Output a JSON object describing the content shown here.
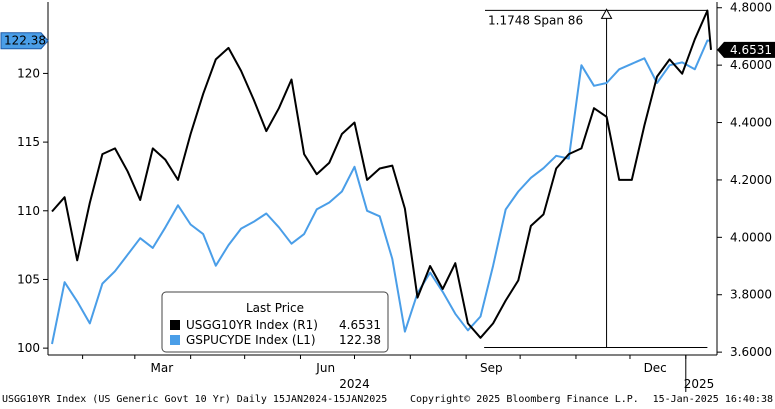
{
  "chart_data": {
    "type": "line",
    "date_range": [
      "2024-01-15",
      "2025-01-15"
    ],
    "x_tick_labels": [
      "Mar",
      "Jun",
      "Sep",
      "Dec"
    ],
    "year_labels": [
      "2024",
      "2025"
    ],
    "y_left": {
      "ticks": [
        100,
        105,
        110,
        115,
        120
      ],
      "ylim": [
        99.5,
        125.2
      ]
    },
    "y_right": {
      "ticks": [
        "3.6000",
        "3.8000",
        "4.0000",
        "4.2000",
        "4.4000",
        "4.6000",
        "4.8000"
      ],
      "ylim": [
        3.59,
        4.82
      ]
    },
    "series": [
      {
        "name": "USGG10YR Index (R1)",
        "axis": "right",
        "color": "#000000",
        "last_value": "4.6531",
        "x": [
          "2024-01-15",
          "2024-01-22",
          "2024-01-29",
          "2024-02-05",
          "2024-02-12",
          "2024-02-19",
          "2024-02-26",
          "2024-03-04",
          "2024-03-11",
          "2024-03-18",
          "2024-03-25",
          "2024-04-01",
          "2024-04-08",
          "2024-04-15",
          "2024-04-22",
          "2024-04-29",
          "2024-05-06",
          "2024-05-13",
          "2024-05-20",
          "2024-05-27",
          "2024-06-03",
          "2024-06-10",
          "2024-06-17",
          "2024-06-24",
          "2024-07-01",
          "2024-07-08",
          "2024-07-15",
          "2024-07-22",
          "2024-07-29",
          "2024-08-05",
          "2024-08-12",
          "2024-08-19",
          "2024-08-26",
          "2024-09-02",
          "2024-09-09",
          "2024-09-16",
          "2024-09-23",
          "2024-09-30",
          "2024-10-07",
          "2024-10-14",
          "2024-10-21",
          "2024-10-28",
          "2024-11-04",
          "2024-11-11",
          "2024-11-18",
          "2024-11-25",
          "2024-12-02",
          "2024-12-09",
          "2024-12-16",
          "2024-12-23",
          "2024-12-30",
          "2025-01-06",
          "2025-01-13",
          "2025-01-15"
        ],
        "y": [
          4.09,
          4.14,
          3.92,
          4.12,
          4.29,
          4.31,
          4.23,
          4.13,
          4.31,
          4.27,
          4.2,
          4.36,
          4.5,
          4.62,
          4.66,
          4.58,
          4.48,
          4.37,
          4.45,
          4.55,
          4.29,
          4.22,
          4.26,
          4.36,
          4.4,
          4.2,
          4.24,
          4.25,
          4.1,
          3.79,
          3.9,
          3.82,
          3.91,
          3.7,
          3.65,
          3.7,
          3.78,
          3.85,
          4.04,
          4.08,
          4.24,
          4.29,
          4.31,
          4.45,
          4.42,
          4.2,
          4.2,
          4.39,
          4.56,
          4.62,
          4.57,
          4.69,
          4.79,
          4.6531
        ]
      },
      {
        "name": "GSPUCYDE Index (L1)",
        "axis": "left",
        "color": "#4a9ee8",
        "last_value": "122.38",
        "x": [
          "2024-01-15",
          "2024-01-22",
          "2024-01-29",
          "2024-02-05",
          "2024-02-12",
          "2024-02-19",
          "2024-02-26",
          "2024-03-04",
          "2024-03-11",
          "2024-03-18",
          "2024-03-25",
          "2024-04-01",
          "2024-04-08",
          "2024-04-15",
          "2024-04-22",
          "2024-04-29",
          "2024-05-06",
          "2024-05-13",
          "2024-05-20",
          "2024-05-27",
          "2024-06-03",
          "2024-06-10",
          "2024-06-17",
          "2024-06-24",
          "2024-07-01",
          "2024-07-08",
          "2024-07-15",
          "2024-07-22",
          "2024-07-29",
          "2024-08-05",
          "2024-08-12",
          "2024-08-19",
          "2024-08-26",
          "2024-09-02",
          "2024-09-09",
          "2024-09-16",
          "2024-09-23",
          "2024-09-30",
          "2024-10-07",
          "2024-10-14",
          "2024-10-21",
          "2024-10-28",
          "2024-11-04",
          "2024-11-11",
          "2024-11-18",
          "2024-11-25",
          "2024-12-02",
          "2024-12-09",
          "2024-12-16",
          "2024-12-23",
          "2024-12-30",
          "2025-01-06",
          "2025-01-13",
          "2025-01-15"
        ],
        "y": [
          100.3,
          104.8,
          103.4,
          101.8,
          104.7,
          105.6,
          106.8,
          108.0,
          107.3,
          108.8,
          110.4,
          109.0,
          108.3,
          106.0,
          107.5,
          108.7,
          109.2,
          109.8,
          108.8,
          107.6,
          108.3,
          110.1,
          110.6,
          111.4,
          113.2,
          110.0,
          109.6,
          106.5,
          101.2,
          104.0,
          105.5,
          104.1,
          102.5,
          101.3,
          102.3,
          106.0,
          110.1,
          111.4,
          112.4,
          113.1,
          114.0,
          113.8,
          120.6,
          119.1,
          119.3,
          120.3,
          120.7,
          121.1,
          119.3,
          120.6,
          120.8,
          120.3,
          122.4,
          122.38
        ]
      }
    ],
    "annotation": {
      "text": "1.1748 Span 86",
      "from": [
        "2024-09-11",
        "3.6162"
      ],
      "to": [
        "2025-01-13",
        "4.7910"
      ]
    },
    "legend": {
      "title": "Last Price",
      "placement": "bottom-left",
      "entries": [
        {
          "label": "USGG10YR Index  (R1)",
          "value": "4.6531",
          "color": "#000000"
        },
        {
          "label": "GSPUCYDE Index  (L1)",
          "value": "122.38",
          "color": "#4a9ee8"
        }
      ]
    },
    "grid": false
  },
  "footer": {
    "left": "USGG10YR Index (US Generic Govt 10 Yr)  Daily 15JAN2024-15JAN2025",
    "center": "Copyright© 2025 Bloomberg Finance L.P.",
    "right": "15-Jan-2025 16:40:38"
  }
}
